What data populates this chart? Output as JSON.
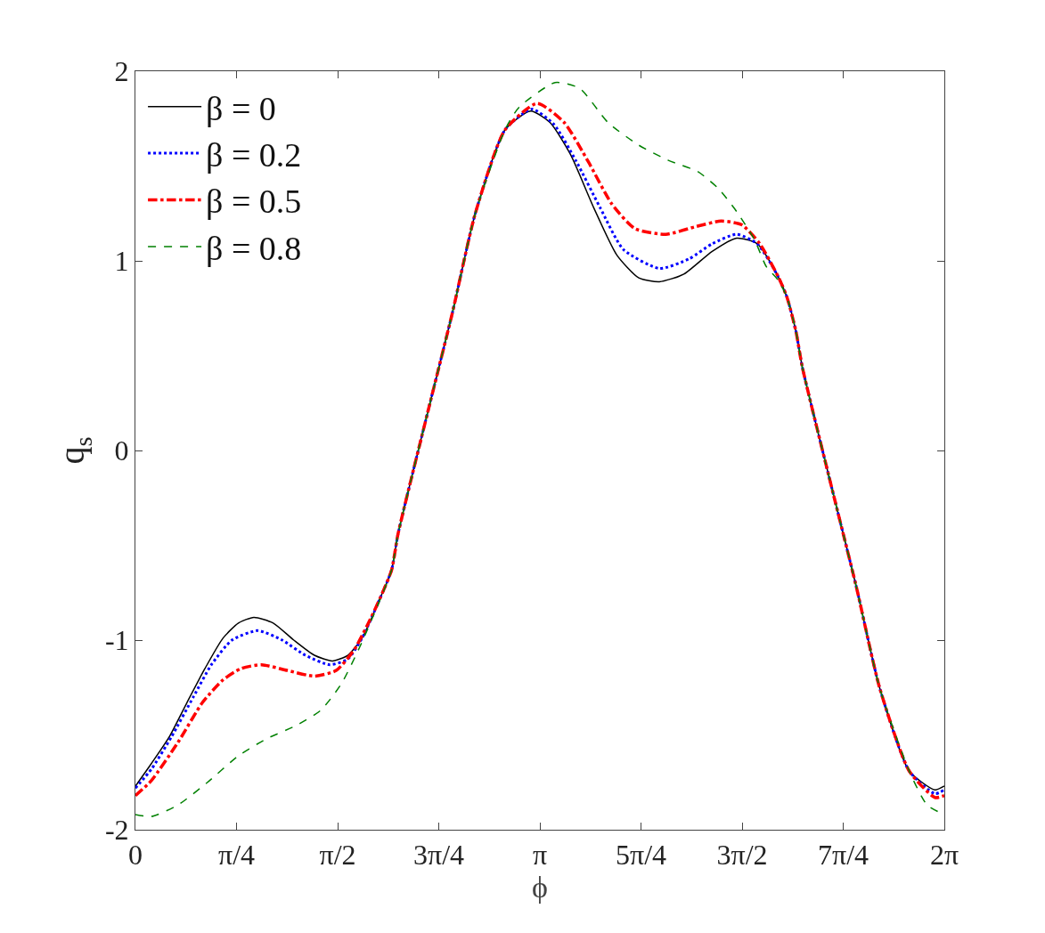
{
  "chart_data": {
    "type": "line",
    "xlabel": "ϕ",
    "ylabel": "q$_{s}$",
    "xlim": [
      0,
      6.2832
    ],
    "ylim": [
      -2,
      2
    ],
    "xticks": [
      0,
      {
        "value": 0.7854,
        "label": "π/4"
      },
      {
        "value": 1.5708,
        "label": "π/2"
      },
      {
        "value": 2.3562,
        "label": "3π/4"
      },
      {
        "value": 3.1416,
        "label": "π"
      },
      {
        "value": 3.927,
        "label": "5π/4"
      },
      {
        "value": 4.7124,
        "label": "3π/2"
      },
      {
        "value": 5.4978,
        "label": "7π/4"
      },
      {
        "value": 6.2832,
        "label": "2π"
      }
    ],
    "yticks": [
      -2,
      -1,
      0,
      1,
      2
    ],
    "legend": "top left",
    "marker": "none",
    "series": [
      {
        "name": "β = 0",
        "color": "#000000",
        "line_style": "solid",
        "x": [
          0,
          0.125,
          0.263,
          0.4,
          0.54,
          0.68,
          0.8,
          0.92,
          1.07,
          1.23,
          1.39,
          1.53,
          1.65,
          1.76,
          1.9,
          1.99,
          2.04,
          2.27,
          2.46,
          2.64,
          2.87,
          3.07,
          3.22,
          3.38,
          3.56,
          3.74,
          3.91,
          4.07,
          4.26,
          4.48,
          4.67,
          4.83,
          4.99,
          5.06,
          5.13,
          5.18,
          5.41,
          5.6,
          5.78,
          6.01,
          6.21,
          6.2832
        ],
        "values": [
          -1.77,
          -1.65,
          -1.51,
          -1.33,
          -1.15,
          -0.99,
          -0.91,
          -0.88,
          -0.91,
          -1.0,
          -1.08,
          -1.11,
          -1.08,
          -0.99,
          -0.78,
          -0.63,
          -0.44,
          0.2,
          0.72,
          1.25,
          1.69,
          1.79,
          1.73,
          1.56,
          1.28,
          1.03,
          0.91,
          0.89,
          0.93,
          1.05,
          1.12,
          1.09,
          0.92,
          0.81,
          0.63,
          0.44,
          -0.2,
          -0.72,
          -1.25,
          -1.69,
          -1.79,
          -1.77
        ]
      },
      {
        "name": "β = 0.2",
        "color": "#0000ff",
        "line_style": "dotted",
        "x": [
          0,
          0.125,
          0.28,
          0.45,
          0.59,
          0.75,
          0.95,
          1.14,
          1.32,
          1.51,
          1.65,
          1.76,
          1.9,
          1.99,
          2.04,
          2.27,
          2.46,
          2.64,
          2.87,
          3.08,
          3.25,
          3.42,
          3.61,
          3.79,
          4.07,
          4.3,
          4.48,
          4.67,
          4.83,
          4.99,
          5.06,
          5.13,
          5.18,
          5.41,
          5.6,
          5.78,
          6.01,
          6.21,
          6.2832
        ],
        "values": [
          -1.78,
          -1.68,
          -1.51,
          -1.3,
          -1.13,
          -1.0,
          -0.95,
          -1.0,
          -1.08,
          -1.13,
          -1.1,
          -0.99,
          -0.78,
          -0.63,
          -0.44,
          0.2,
          0.72,
          1.25,
          1.69,
          1.8,
          1.72,
          1.53,
          1.28,
          1.06,
          0.96,
          1.01,
          1.09,
          1.14,
          1.09,
          0.92,
          0.81,
          0.63,
          0.44,
          -0.2,
          -0.72,
          -1.25,
          -1.69,
          -1.81,
          -1.79
        ]
      },
      {
        "name": "β = 0.5",
        "color": "#ff0000",
        "line_style": "dashdot",
        "x": [
          0,
          0.125,
          0.33,
          0.52,
          0.68,
          0.82,
          0.98,
          1.18,
          1.39,
          1.56,
          1.7,
          1.81,
          1.9,
          1.99,
          2.04,
          2.27,
          2.46,
          2.64,
          2.87,
          3.12,
          3.33,
          3.52,
          3.7,
          3.88,
          4.12,
          4.35,
          4.55,
          4.71,
          4.85,
          4.99,
          5.06,
          5.13,
          5.18,
          5.41,
          5.6,
          5.78,
          6.01,
          6.21,
          6.2832
        ],
        "values": [
          -1.82,
          -1.74,
          -1.54,
          -1.33,
          -1.21,
          -1.15,
          -1.13,
          -1.16,
          -1.19,
          -1.16,
          -1.05,
          -0.91,
          -0.78,
          -0.63,
          -0.44,
          0.2,
          0.72,
          1.25,
          1.69,
          1.83,
          1.73,
          1.52,
          1.3,
          1.17,
          1.14,
          1.18,
          1.21,
          1.19,
          1.09,
          0.92,
          0.81,
          0.63,
          0.44,
          -0.2,
          -0.72,
          -1.25,
          -1.69,
          -1.83,
          -1.82
        ]
      },
      {
        "name": "β = 0.8",
        "color": "#008000",
        "line_style": "dashed",
        "x": [
          0,
          0.125,
          0.33,
          0.56,
          0.8,
          1.02,
          1.25,
          1.44,
          1.6,
          1.74,
          1.88,
          1.99,
          2.04,
          2.27,
          2.46,
          2.64,
          2.87,
          2.98,
          3.26,
          3.45,
          3.67,
          3.91,
          4.14,
          4.37,
          4.53,
          4.67,
          4.81,
          4.9,
          4.99,
          5.06,
          5.13,
          5.18,
          5.41,
          5.6,
          5.78,
          6.01,
          6.15,
          6.2832
        ],
        "values": [
          -1.92,
          -1.93,
          -1.87,
          -1.75,
          -1.61,
          -1.52,
          -1.45,
          -1.37,
          -1.23,
          -1.04,
          -0.82,
          -0.63,
          -0.44,
          0.2,
          0.72,
          1.25,
          1.69,
          1.81,
          1.94,
          1.91,
          1.73,
          1.61,
          1.53,
          1.47,
          1.38,
          1.26,
          1.11,
          0.97,
          0.9,
          0.81,
          0.63,
          0.44,
          -0.2,
          -0.72,
          -1.25,
          -1.69,
          -1.87,
          -1.92
        ]
      }
    ]
  }
}
